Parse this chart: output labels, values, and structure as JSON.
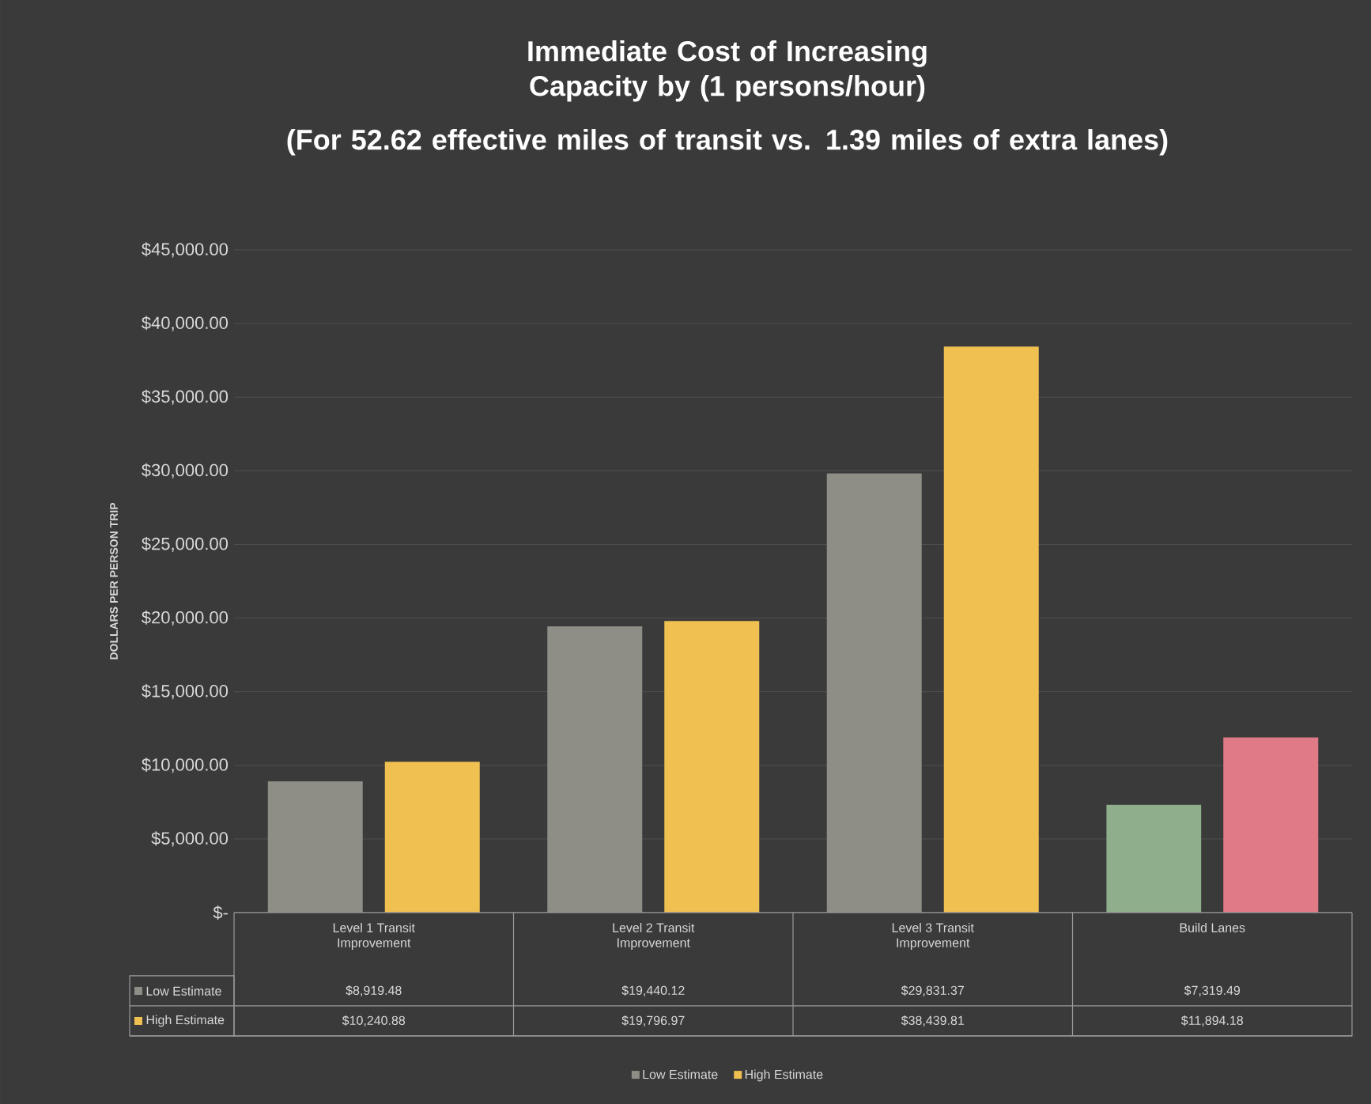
{
  "chart_data": {
    "type": "bar",
    "title": "Immediate Cost of Increasing Capacity by (1 persons/hour)",
    "subtitle": "(For 52.62 effective miles of transit vs. 1.39 miles of extra lanes)",
    "ylabel": "DOLLARS PER PERSON TRIP",
    "categories": [
      "Level 1 Transit Improvement",
      "Level 2 Transit Improvement",
      "Level 3 Transit Improvement",
      "Build Lanes"
    ],
    "series": [
      {
        "name": "Low Estimate",
        "color": "#8e8d86",
        "colors": [
          "#8e8d86",
          "#8e8d86",
          "#8e8d86",
          "#8fae8c"
        ],
        "values": [
          8919.48,
          19440.12,
          29831.37,
          7319.49
        ],
        "value_labels": [
          "$8,919.48",
          "$19,440.12",
          "$29,831.37",
          "$7,319.49"
        ]
      },
      {
        "name": "High Estimate",
        "color": "#f0c050",
        "colors": [
          "#f0c050",
          "#f0c050",
          "#f0c050",
          "#e07a86"
        ],
        "values": [
          10240.88,
          19796.97,
          38439.81,
          11894.18
        ],
        "value_labels": [
          "$10,240.88",
          "$19,796.97",
          "$38,439.81",
          "$11,894.18"
        ]
      }
    ],
    "ylim": [
      0,
      45000
    ],
    "yticks": [
      {
        "value": 0,
        "label": "$-"
      },
      {
        "value": 5000,
        "label": "$5,000.00"
      },
      {
        "value": 10000,
        "label": "$10,000.00"
      },
      {
        "value": 15000,
        "label": "$15,000.00"
      },
      {
        "value": 20000,
        "label": "$20,000.00"
      },
      {
        "value": 25000,
        "label": "$25,000.00"
      },
      {
        "value": 30000,
        "label": "$30,000.00"
      },
      {
        "value": 35000,
        "label": "$35,000.00"
      },
      {
        "value": 40000,
        "label": "$40,000.00"
      },
      {
        "value": 45000,
        "label": "$45,000.00"
      }
    ],
    "grid": "y",
    "legend": "bottom"
  }
}
